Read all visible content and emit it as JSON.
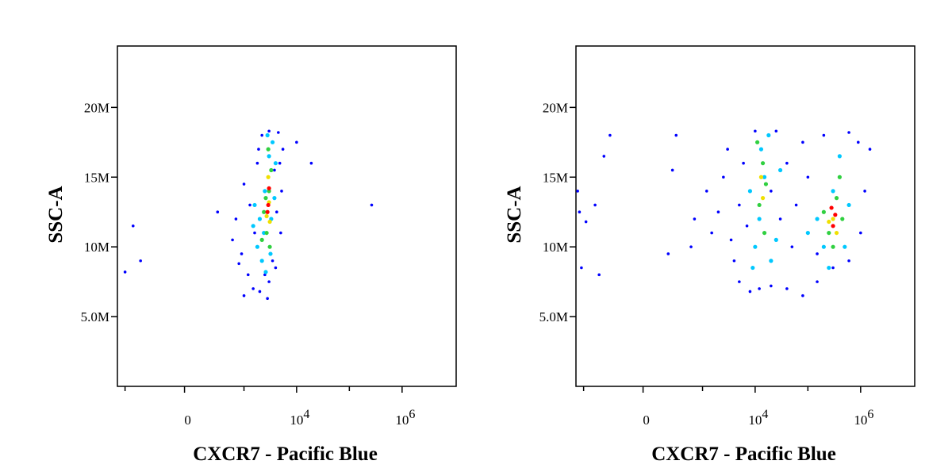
{
  "chart_data": [
    {
      "type": "scatter",
      "xlabel": "CXCR7 - Pacific Blue",
      "ylabel": "SSC-A",
      "xscale": "arcsinh",
      "xlim": [
        -1400,
        10600000
      ],
      "ylim": [
        0,
        24400000
      ],
      "xticks": [
        0,
        {
          "value": 10000,
          "label": "10^4"
        },
        {
          "value": 1000000,
          "label": "10^6"
        }
      ],
      "xminorticks": [
        -1000,
        1000,
        100000
      ],
      "yticks": [
        {
          "value": 5000000,
          "label": "5.0M"
        },
        {
          "value": 10000000,
          "label": "10M"
        },
        {
          "value": 15000000,
          "label": "15M"
        },
        {
          "value": 20000000,
          "label": "20M"
        }
      ],
      "series": [
        {
          "color": "#0000ff",
          "x": [
            1200,
            900,
            1500,
            2000,
            3000,
            4000,
            1800,
            2200,
            4500,
            5500,
            5200,
            5000,
            700,
            600,
            1000,
            3500,
            2500,
            1600,
            4800,
            3000,
            -700,
            -500,
            -1000,
            300,
            265000,
            19000,
            10000,
            1000,
            2800,
            4200,
            1300,
            800,
            1900,
            3800
          ],
          "values": [
            8000000,
            9500000,
            7000000,
            6800000,
            7500000,
            8500000,
            16000000,
            18000000,
            18200000,
            17000000,
            14000000,
            11000000,
            12000000,
            10500000,
            14500000,
            9000000,
            8000000,
            11000000,
            16000000,
            18300000,
            11500000,
            9000000,
            8200000,
            12500000,
            13000000,
            16000000,
            17500000,
            6500000,
            6300000,
            12500000,
            13000000,
            8800000,
            17000000,
            15500000
          ]
        },
        {
          "color": "#00c8ff",
          "x": [
            1800,
            2200,
            2600,
            3200,
            2000,
            2500,
            3000,
            3500,
            2800,
            1600,
            3800,
            2400,
            4000,
            1500,
            3300
          ],
          "values": [
            10000000,
            9000000,
            8200000,
            9500000,
            12000000,
            14000000,
            16500000,
            17500000,
            18000000,
            13000000,
            13500000,
            11000000,
            16000000,
            11500000,
            12000000
          ]
        },
        {
          "color": "#30d040",
          "x": [
            2400,
            2700,
            3000,
            3300,
            2600,
            2900,
            2200,
            3100
          ],
          "values": [
            12500000,
            11000000,
            14000000,
            15500000,
            13500000,
            17000000,
            10500000,
            10000000
          ]
        },
        {
          "color": "#f0e000",
          "x": [
            2700,
            3000,
            2900,
            3100
          ],
          "values": [
            12200000,
            13200000,
            15000000,
            11800000
          ]
        },
        {
          "color": "#ff0000",
          "x": [
            2900,
            2800,
            3000
          ],
          "values": [
            13000000,
            12500000,
            14200000
          ]
        }
      ]
    },
    {
      "type": "scatter",
      "xlabel": "CXCR7 - Pacific Blue",
      "ylabel": "SSC-A",
      "xscale": "arcsinh",
      "xlim": [
        -1400,
        10600000
      ],
      "ylim": [
        0,
        24400000
      ],
      "xticks": [
        0,
        {
          "value": 10000,
          "label": "10^4"
        },
        {
          "value": 1000000,
          "label": "10^6"
        }
      ],
      "xminorticks": [
        -1000,
        1000,
        100000
      ],
      "yticks": [
        {
          "value": 5000000,
          "label": "5.0M"
        },
        {
          "value": 10000000,
          "label": "10M"
        },
        {
          "value": 15000000,
          "label": "15M"
        },
        {
          "value": 20000000,
          "label": "20M"
        }
      ],
      "series": [
        {
          "color": "#0000ff",
          "x": [
            -1300,
            -1200,
            -900,
            -600,
            -300,
            300,
            -400,
            250,
            -1100,
            -500,
            200,
            600,
            700,
            1200,
            1500,
            2000,
            2500,
            3000,
            4000,
            5000,
            8000,
            12000,
            20000,
            40000,
            80000,
            150000,
            300000,
            600000,
            1000000,
            1200000,
            900000,
            600000,
            200000,
            80000,
            40000,
            30000,
            50000,
            6000,
            3500,
            10000,
            25000,
            1500000,
            20000,
            60000,
            100000,
            150000,
            5000,
            7000
          ],
          "values": [
            14000000,
            12500000,
            11800000,
            13000000,
            18000000,
            18000000,
            16500000,
            15500000,
            8500000,
            8000000,
            9500000,
            10000000,
            12000000,
            14000000,
            11000000,
            12500000,
            15000000,
            17000000,
            9000000,
            7500000,
            6800000,
            7000000,
            7200000,
            7000000,
            6500000,
            7500000,
            8500000,
            9000000,
            11000000,
            14000000,
            17500000,
            18200000,
            18000000,
            17500000,
            16000000,
            12000000,
            10000000,
            16000000,
            10500000,
            18300000,
            18300000,
            17000000,
            14000000,
            13000000,
            15000000,
            9500000,
            13000000,
            11500000
          ]
        },
        {
          "color": "#00c8ff",
          "x": [
            10000,
            12000,
            15000,
            13000,
            18000,
            8000,
            20000,
            9000,
            200000,
            300000,
            400000,
            500000,
            250000,
            150000,
            600000,
            100000,
            30000,
            25000
          ],
          "values": [
            10000000,
            12000000,
            15000000,
            17000000,
            18000000,
            14000000,
            9000000,
            8500000,
            10000000,
            14000000,
            16500000,
            10000000,
            8500000,
            12000000,
            13000000,
            11000000,
            15500000,
            10500000
          ]
        },
        {
          "color": "#30d040",
          "x": [
            12000,
            15000,
            14000,
            16000,
            11000,
            250000,
            350000,
            300000,
            450000,
            200000,
            400000
          ],
          "values": [
            13000000,
            11000000,
            16000000,
            14500000,
            17500000,
            11000000,
            13500000,
            10000000,
            12000000,
            12500000,
            15000000
          ]
        },
        {
          "color": "#f0e000",
          "x": [
            14000,
            300000,
            350000,
            250000,
            13000
          ],
          "values": [
            13500000,
            12000000,
            11000000,
            11800000,
            15000000
          ]
        },
        {
          "color": "#ff0000",
          "x": [
            300000,
            330000,
            280000
          ],
          "values": [
            11500000,
            12300000,
            12800000
          ]
        }
      ]
    }
  ]
}
